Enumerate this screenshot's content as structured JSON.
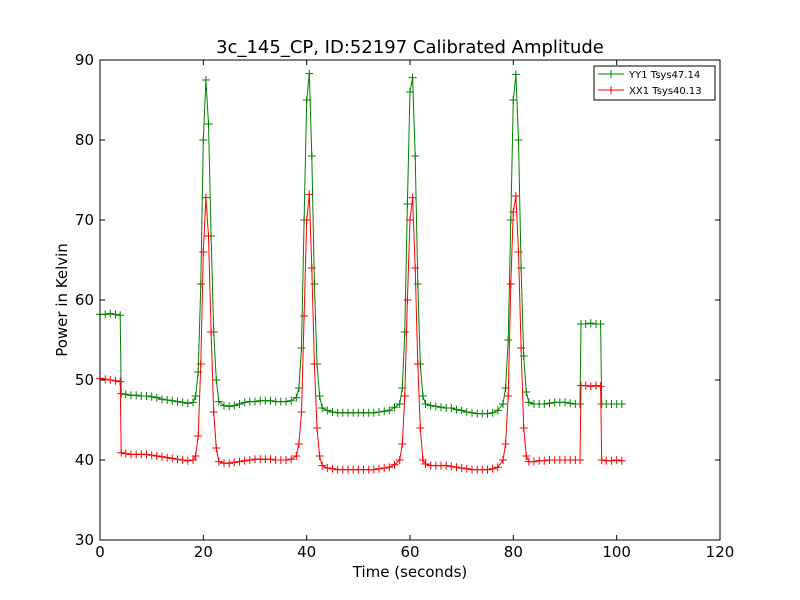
{
  "chart_data": {
    "type": "line",
    "title": "3c_145_CP, ID:52197 Calibrated Amplitude",
    "xlabel": "Time (seconds)",
    "ylabel": "Power in Kelvin",
    "xlim": [
      0,
      120
    ],
    "ylim": [
      30,
      90
    ],
    "xticks": [
      0,
      20,
      40,
      60,
      80,
      100,
      120
    ],
    "yticks": [
      30,
      40,
      50,
      60,
      70,
      80,
      90
    ],
    "grid": false,
    "legend_position": "top-right",
    "marker": "+",
    "series": [
      {
        "name": "YY1 Tsys47.14",
        "color": "#008000",
        "x": [
          0,
          1,
          2,
          3,
          3.9,
          4.1,
          5,
          6,
          7,
          8,
          9,
          10,
          11,
          12,
          13,
          14,
          15,
          16,
          17,
          18,
          18.5,
          19,
          19.5,
          20,
          20.5,
          21,
          21.5,
          22,
          22.5,
          23,
          24,
          25,
          26,
          27,
          28,
          29,
          30,
          31,
          32,
          33,
          34,
          35,
          36,
          37,
          38,
          38.5,
          39,
          39.5,
          40,
          40.5,
          41,
          41.5,
          42,
          42.5,
          43,
          44,
          45,
          46,
          47,
          48,
          49,
          50,
          51,
          52,
          53,
          54,
          55,
          56,
          57,
          58,
          58.5,
          59,
          59.5,
          60,
          60.5,
          61,
          61.5,
          62,
          62.5,
          63,
          64,
          65,
          66,
          67,
          68,
          69,
          70,
          71,
          72,
          73,
          74,
          75,
          76,
          77,
          78,
          78.5,
          79,
          79.5,
          80,
          80.5,
          81,
          81.5,
          82,
          82.5,
          83,
          84,
          85,
          86,
          87,
          88,
          89,
          90,
          91,
          92,
          92.9,
          93.1,
          94,
          95,
          96,
          96.9,
          97.1,
          98,
          99,
          100,
          101
        ],
        "y": [
          58.2,
          58.2,
          58.3,
          58.2,
          58.1,
          48.3,
          48.2,
          48.1,
          48.1,
          48.0,
          48.0,
          47.9,
          47.8,
          47.6,
          47.5,
          47.4,
          47.3,
          47.2,
          47.1,
          47.2,
          48.0,
          51.0,
          62.0,
          80.0,
          87.5,
          82.0,
          68.0,
          56.0,
          50.0,
          47.3,
          46.8,
          46.7,
          46.8,
          47.0,
          47.2,
          47.3,
          47.3,
          47.4,
          47.4,
          47.4,
          47.3,
          47.3,
          47.3,
          47.4,
          47.8,
          49.0,
          54.0,
          70.0,
          85.0,
          88.3,
          78.0,
          62.0,
          52.0,
          48.0,
          46.5,
          46.2,
          46.0,
          45.9,
          45.9,
          45.9,
          45.9,
          45.9,
          45.9,
          45.9,
          45.9,
          46.0,
          46.1,
          46.2,
          46.6,
          47.0,
          49.0,
          56.0,
          72.0,
          86.0,
          87.8,
          78.0,
          62.0,
          52.0,
          48.0,
          47.0,
          46.8,
          46.7,
          46.6,
          46.5,
          46.5,
          46.3,
          46.2,
          46.0,
          45.9,
          45.8,
          45.8,
          45.8,
          45.9,
          46.2,
          47.0,
          49.0,
          55.0,
          70.0,
          85.0,
          88.2,
          80.0,
          64.0,
          53.0,
          48.5,
          47.2,
          47.0,
          47.0,
          47.0,
          47.1,
          47.2,
          47.2,
          47.2,
          47.1,
          47.0,
          47.0,
          57.0,
          57.0,
          57.1,
          57.0,
          57.0,
          47.0,
          47.0,
          47.0,
          47.0,
          47.0
        ]
      },
      {
        "name": "XX1 Tsys40.13",
        "color": "#ff0000",
        "x": [
          0,
          1,
          2,
          3,
          3.9,
          4.1,
          5,
          6,
          7,
          8,
          9,
          10,
          11,
          12,
          13,
          14,
          15,
          16,
          17,
          18,
          18.5,
          19,
          19.5,
          20,
          20.5,
          21,
          21.5,
          22,
          22.5,
          23,
          24,
          25,
          26,
          27,
          28,
          29,
          30,
          31,
          32,
          33,
          34,
          35,
          36,
          37,
          38,
          38.5,
          39,
          39.5,
          40,
          40.5,
          41,
          41.5,
          42,
          42.5,
          43,
          44,
          45,
          46,
          47,
          48,
          49,
          50,
          51,
          52,
          53,
          54,
          55,
          56,
          57,
          58,
          58.5,
          59,
          59.5,
          60,
          60.5,
          61,
          61.5,
          62,
          62.5,
          63,
          64,
          65,
          66,
          67,
          68,
          69,
          70,
          71,
          72,
          73,
          74,
          75,
          76,
          77,
          78,
          78.5,
          79,
          79.5,
          80,
          80.5,
          81,
          81.5,
          82,
          82.5,
          83,
          84,
          85,
          86,
          87,
          88,
          89,
          90,
          91,
          92,
          92.9,
          93.1,
          94,
          95,
          96,
          96.9,
          97.1,
          98,
          99,
          100,
          101
        ],
        "y": [
          50.2,
          50.1,
          50.0,
          49.9,
          49.8,
          40.9,
          40.8,
          40.7,
          40.7,
          40.7,
          40.7,
          40.6,
          40.5,
          40.4,
          40.3,
          40.2,
          40.1,
          40.0,
          39.9,
          40.0,
          40.5,
          43.0,
          52.0,
          66.0,
          72.8,
          68.0,
          56.0,
          46.0,
          41.5,
          39.8,
          39.6,
          39.6,
          39.7,
          39.8,
          39.9,
          40.0,
          40.1,
          40.1,
          40.1,
          40.1,
          40.0,
          40.0,
          40.0,
          40.1,
          40.5,
          42.0,
          46.0,
          58.0,
          70.0,
          73.2,
          64.0,
          52.0,
          44.0,
          40.5,
          39.3,
          39.0,
          38.9,
          38.8,
          38.8,
          38.8,
          38.8,
          38.8,
          38.8,
          38.8,
          38.8,
          38.9,
          39.0,
          39.1,
          39.4,
          40.0,
          42.0,
          48.0,
          60.0,
          70.0,
          72.8,
          64.0,
          52.0,
          44.0,
          40.0,
          39.5,
          39.3,
          39.3,
          39.3,
          39.3,
          39.2,
          39.1,
          39.0,
          38.9,
          38.8,
          38.8,
          38.8,
          38.8,
          38.9,
          39.1,
          40.0,
          42.0,
          48.0,
          62.0,
          71.0,
          73.0,
          66.0,
          54.0,
          44.0,
          40.5,
          39.8,
          39.8,
          39.9,
          39.9,
          40.0,
          40.0,
          40.0,
          40.0,
          40.0,
          40.0,
          40.0,
          49.3,
          49.3,
          49.2,
          49.3,
          49.2,
          40.0,
          39.9,
          39.9,
          40.0,
          39.9
        ]
      }
    ]
  }
}
